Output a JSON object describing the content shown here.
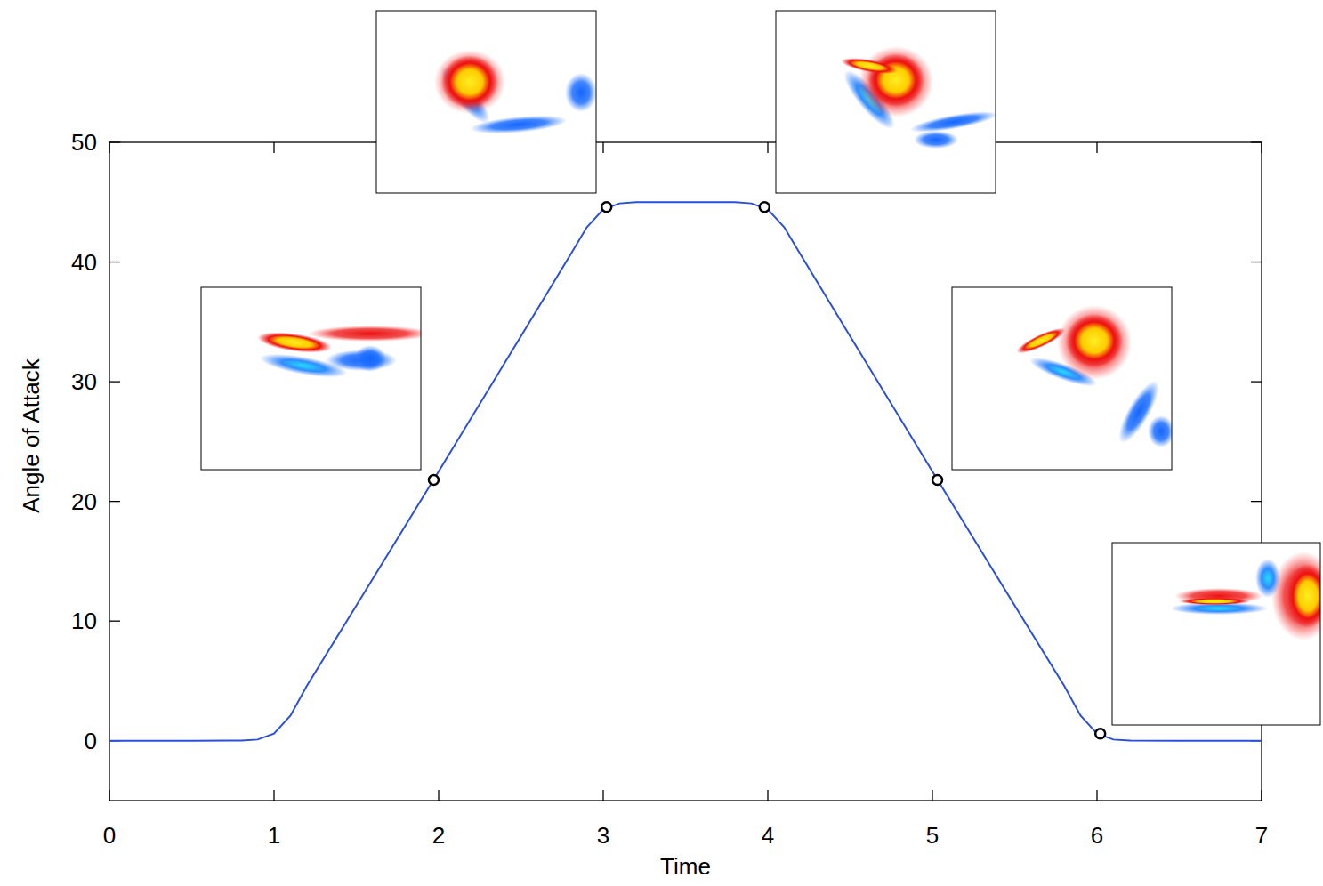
{
  "chart_data": {
    "type": "line",
    "x_label": "Time",
    "y_label": "Angle of Attack",
    "xlim": [
      0,
      7
    ],
    "xticks": [
      0,
      1,
      2,
      3,
      4,
      5,
      6,
      7
    ],
    "ylim": [
      -5,
      50
    ],
    "yticks": [
      0,
      10,
      20,
      30,
      40,
      50
    ],
    "grid": false,
    "series": [
      {
        "color": "#2a4fdc",
        "line_style": "solid",
        "marker": "none",
        "x": [
          0,
          0.5,
          0.8,
          0.9,
          1.0,
          1.1,
          1.2,
          1.5,
          2.0,
          2.5,
          2.8,
          2.9,
          3.0,
          3.1,
          3.2,
          3.5,
          3.8,
          3.9,
          4.0,
          4.1,
          4.2,
          4.5,
          5.0,
          5.5,
          5.8,
          5.9,
          6.0,
          6.1,
          6.2,
          6.5,
          7.0
        ],
        "values": [
          0,
          0,
          0.02,
          0.1,
          0.6,
          2.1,
          4.6,
          11.3,
          22.5,
          33.8,
          40.6,
          42.9,
          44.4,
          44.9,
          45,
          45,
          45,
          44.9,
          44.4,
          42.9,
          40.6,
          33.8,
          22.5,
          11.3,
          4.6,
          2.1,
          0.6,
          0.1,
          0.02,
          0,
          0
        ]
      },
      {
        "color": "#000000",
        "line_style": "none",
        "marker": "circle",
        "x": [
          1.97,
          3.02,
          3.98,
          5.03,
          6.02
        ],
        "values": [
          21.8,
          44.6,
          44.6,
          21.8,
          0.6
        ]
      }
    ]
  }
}
